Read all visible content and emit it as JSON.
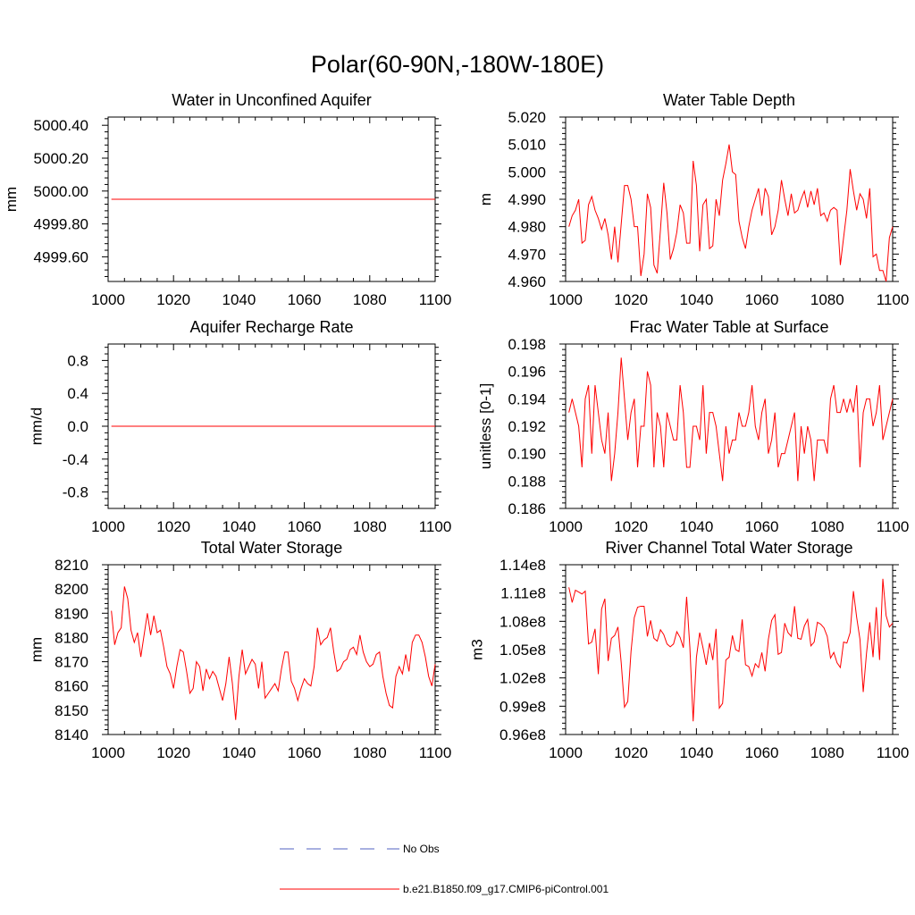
{
  "figure": {
    "title": "Polar(60-90N,-180W-180E)",
    "series_color": "#ff0000",
    "obs_color": "#5060c0"
  },
  "legend": {
    "entries": [
      {
        "label": "No Obs",
        "style": "dashed",
        "color": "#5060c0"
      },
      {
        "label": "b.e21.B1850.f09_g17.CMIP6-piControl.001",
        "style": "solid",
        "color": "#ff0000"
      }
    ]
  },
  "chart_data": [
    {
      "type": "line",
      "title": "Water in Unconfined Aquifer",
      "xlabel": "",
      "ylabel": "mm",
      "xlim": [
        1000,
        1100
      ],
      "ylim": [
        4999.45,
        5000.45
      ],
      "xticks": [
        "1000",
        "1020",
        "1040",
        "1060",
        "1080",
        "1100"
      ],
      "yticks": [
        {
          "v": 4999.6,
          "label": "4999.60"
        },
        {
          "v": 4999.8,
          "label": "4999.80"
        },
        {
          "v": 5000.0,
          "label": "5000.00"
        },
        {
          "v": 5000.2,
          "label": "5000.20"
        },
        {
          "v": 5000.4,
          "label": "5000.40"
        }
      ],
      "x_start": 1001,
      "series": [
        {
          "name": "b.e21.B1850.f09_g17.CMIP6-piControl.001",
          "values": [
            4999.95,
            4999.95,
            4999.95,
            4999.95,
            4999.95,
            4999.95,
            4999.95,
            4999.95,
            4999.95,
            4999.95,
            4999.95,
            4999.95,
            4999.95,
            4999.95,
            4999.95,
            4999.95,
            4999.95,
            4999.95,
            4999.95,
            4999.95,
            4999.95,
            4999.95,
            4999.95,
            4999.95,
            4999.95,
            4999.95,
            4999.95,
            4999.95,
            4999.95,
            4999.95,
            4999.95,
            4999.95,
            4999.95,
            4999.95,
            4999.95,
            4999.95,
            4999.95,
            4999.95,
            4999.95,
            4999.95,
            4999.95,
            4999.95,
            4999.95,
            4999.95,
            4999.95,
            4999.95,
            4999.95,
            4999.95,
            4999.95,
            4999.95,
            4999.95,
            4999.95,
            4999.95,
            4999.95,
            4999.95,
            4999.95,
            4999.95,
            4999.95,
            4999.95,
            4999.95,
            4999.95,
            4999.95,
            4999.95,
            4999.95,
            4999.95,
            4999.95,
            4999.95,
            4999.95,
            4999.95,
            4999.95,
            4999.95,
            4999.95,
            4999.95,
            4999.95,
            4999.95,
            4999.95,
            4999.95,
            4999.95,
            4999.95,
            4999.95,
            4999.95,
            4999.95,
            4999.95,
            4999.95,
            4999.95,
            4999.95,
            4999.95,
            4999.95,
            4999.95,
            4999.95,
            4999.95,
            4999.95,
            4999.95,
            4999.95,
            4999.95,
            4999.95,
            4999.95,
            4999.95,
            4999.95,
            4999.95
          ]
        }
      ]
    },
    {
      "type": "line",
      "title": "Water Table Depth",
      "xlabel": "",
      "ylabel": "m",
      "xlim": [
        1000,
        1100
      ],
      "ylim": [
        4.96,
        5.02
      ],
      "xticks": [
        "1000",
        "1020",
        "1040",
        "1060",
        "1080",
        "1100"
      ],
      "yticks": [
        {
          "v": 4.96,
          "label": "4.960"
        },
        {
          "v": 4.97,
          "label": "4.970"
        },
        {
          "v": 4.98,
          "label": "4.980"
        },
        {
          "v": 4.99,
          "label": "4.990"
        },
        {
          "v": 5.0,
          "label": "5.000"
        },
        {
          "v": 5.01,
          "label": "5.010"
        },
        {
          "v": 5.02,
          "label": "5.020"
        }
      ],
      "x_start": 1001,
      "series": [
        {
          "name": "b.e21.B1850.f09_g17.CMIP6-piControl.001",
          "values": [
            4.98,
            4.984,
            4.986,
            4.99,
            4.974,
            4.975,
            4.988,
            4.991,
            4.986,
            4.983,
            4.979,
            4.983,
            4.977,
            4.968,
            4.98,
            4.967,
            4.981,
            4.995,
            4.995,
            4.99,
            4.98,
            4.98,
            4.962,
            4.97,
            4.992,
            4.987,
            4.966,
            4.963,
            4.979,
            4.996,
            4.985,
            4.968,
            4.972,
            4.978,
            4.988,
            4.985,
            4.974,
            4.974,
            5.004,
            4.995,
            4.971,
            4.988,
            4.99,
            4.972,
            4.973,
            4.99,
            4.984,
            4.997,
            5.003,
            5.01,
            5.0,
            4.999,
            4.982,
            4.976,
            4.972,
            4.98,
            4.986,
            4.99,
            4.994,
            4.984,
            4.994,
            4.991,
            4.977,
            4.98,
            4.986,
            4.997,
            4.99,
            4.984,
            4.992,
            4.985,
            4.986,
            4.99,
            4.993,
            4.987,
            4.993,
            4.988,
            4.994,
            4.984,
            4.985,
            4.982,
            4.986,
            4.987,
            4.986,
            4.966,
            4.976,
            4.986,
            5.001,
            4.993,
            4.986,
            4.992,
            4.99,
            4.983,
            4.994,
            4.969,
            4.97,
            4.964,
            4.964,
            4.96,
            4.976,
            4.98
          ]
        }
      ]
    },
    {
      "type": "line",
      "title": "Aquifer Recharge Rate",
      "xlabel": "",
      "ylabel": "mm/d",
      "xlim": [
        1000,
        1100
      ],
      "ylim": [
        -1.0,
        1.0
      ],
      "xticks": [
        "1000",
        "1020",
        "1040",
        "1060",
        "1080",
        "1100"
      ],
      "yticks": [
        {
          "v": -0.8,
          "label": "-0.8"
        },
        {
          "v": -0.4,
          "label": "-0.4"
        },
        {
          "v": 0.0,
          "label": "0.0"
        },
        {
          "v": 0.4,
          "label": "0.4"
        },
        {
          "v": 0.8,
          "label": "0.8"
        }
      ],
      "x_start": 1001,
      "series": [
        {
          "name": "b.e21.B1850.f09_g17.CMIP6-piControl.001",
          "values": [
            0.0,
            0.0,
            0.0,
            0.0,
            0.0,
            0.0,
            0.0,
            0.0,
            0.0,
            0.0,
            0.0,
            0.0,
            0.0,
            0.0,
            0.0,
            0.0,
            0.0,
            0.0,
            0.0,
            0.0,
            0.0,
            0.0,
            0.0,
            0.0,
            0.0,
            0.0,
            0.0,
            0.0,
            0.0,
            0.0,
            0.0,
            0.0,
            0.0,
            0.0,
            0.0,
            0.0,
            0.0,
            0.0,
            0.0,
            0.0,
            0.0,
            0.0,
            0.0,
            0.0,
            0.0,
            0.0,
            0.0,
            0.0,
            0.0,
            0.0,
            0.0,
            0.0,
            0.0,
            0.0,
            0.0,
            0.0,
            0.0,
            0.0,
            0.0,
            0.0,
            0.0,
            0.0,
            0.0,
            0.0,
            0.0,
            0.0,
            0.0,
            0.0,
            0.0,
            0.0,
            0.0,
            0.0,
            0.0,
            0.0,
            0.0,
            0.0,
            0.0,
            0.0,
            0.0,
            0.0,
            0.0,
            0.0,
            0.0,
            0.0,
            0.0,
            0.0,
            0.0,
            0.0,
            0.0,
            0.0,
            0.0,
            0.0,
            0.0,
            0.0,
            0.0,
            0.0,
            0.0,
            0.0,
            0.0,
            0.0
          ]
        }
      ]
    },
    {
      "type": "line",
      "title": "Frac Water Table at Surface",
      "xlabel": "",
      "ylabel": "unitless [0-1]",
      "xlim": [
        1000,
        1100
      ],
      "ylim": [
        0.186,
        0.198
      ],
      "xticks": [
        "1000",
        "1020",
        "1040",
        "1060",
        "1080",
        "1100"
      ],
      "yticks": [
        {
          "v": 0.186,
          "label": "0.186"
        },
        {
          "v": 0.188,
          "label": "0.188"
        },
        {
          "v": 0.19,
          "label": "0.190"
        },
        {
          "v": 0.192,
          "label": "0.192"
        },
        {
          "v": 0.194,
          "label": "0.194"
        },
        {
          "v": 0.196,
          "label": "0.196"
        },
        {
          "v": 0.198,
          "label": "0.198"
        }
      ],
      "x_start": 1001,
      "series": [
        {
          "name": "b.e21.B1850.f09_g17.CMIP6-piControl.001",
          "values": [
            0.193,
            0.194,
            0.193,
            0.192,
            0.189,
            0.194,
            0.195,
            0.19,
            0.195,
            0.193,
            0.191,
            0.19,
            0.193,
            0.188,
            0.19,
            0.193,
            0.197,
            0.194,
            0.191,
            0.193,
            0.194,
            0.189,
            0.192,
            0.192,
            0.196,
            0.195,
            0.189,
            0.193,
            0.192,
            0.189,
            0.193,
            0.192,
            0.191,
            0.191,
            0.195,
            0.193,
            0.189,
            0.189,
            0.192,
            0.192,
            0.191,
            0.195,
            0.19,
            0.193,
            0.193,
            0.192,
            0.19,
            0.188,
            0.192,
            0.19,
            0.191,
            0.191,
            0.193,
            0.192,
            0.192,
            0.193,
            0.195,
            0.192,
            0.191,
            0.193,
            0.194,
            0.19,
            0.191,
            0.193,
            0.189,
            0.19,
            0.19,
            0.191,
            0.192,
            0.193,
            0.188,
            0.192,
            0.19,
            0.192,
            0.191,
            0.188,
            0.191,
            0.191,
            0.191,
            0.19,
            0.194,
            0.195,
            0.193,
            0.193,
            0.194,
            0.193,
            0.194,
            0.193,
            0.195,
            0.189,
            0.193,
            0.194,
            0.194,
            0.192,
            0.193,
            0.195,
            0.191,
            0.192,
            0.193,
            0.194
          ]
        }
      ]
    },
    {
      "type": "line",
      "title": "Total Water Storage",
      "xlabel": "",
      "ylabel": "mm",
      "xlim": [
        1000,
        1100
      ],
      "ylim": [
        8140,
        8210
      ],
      "xticks": [
        "1000",
        "1020",
        "1040",
        "1060",
        "1080",
        "1100"
      ],
      "yticks": [
        {
          "v": 8140,
          "label": "8140"
        },
        {
          "v": 8150,
          "label": "8150"
        },
        {
          "v": 8160,
          "label": "8160"
        },
        {
          "v": 8170,
          "label": "8170"
        },
        {
          "v": 8180,
          "label": "8180"
        },
        {
          "v": 8190,
          "label": "8190"
        },
        {
          "v": 8200,
          "label": "8200"
        },
        {
          "v": 8210,
          "label": "8210"
        }
      ],
      "x_start": 1001,
      "series": [
        {
          "name": "b.e21.B1850.f09_g17.CMIP6-piControl.001",
          "values": [
            8191,
            8177,
            8182,
            8184,
            8201,
            8196,
            8183,
            8178,
            8182,
            8172,
            8181,
            8190,
            8181,
            8189,
            8182,
            8183,
            8176,
            8168,
            8165,
            8159,
            8168,
            8175,
            8174,
            8166,
            8157,
            8159,
            8170,
            8168,
            8158,
            8167,
            8163,
            8166,
            8164,
            8159,
            8154,
            8161,
            8172,
            8161,
            8146,
            8164,
            8175,
            8165,
            8168,
            8171,
            8169,
            8159,
            8170,
            8155,
            8157,
            8159,
            8161,
            8158,
            8167,
            8174,
            8174,
            8162,
            8159,
            8154,
            8159,
            8163,
            8161,
            8160,
            8168,
            8184,
            8177,
            8179,
            8180,
            8184,
            8174,
            8166,
            8167,
            8170,
            8171,
            8175,
            8176,
            8173,
            8181,
            8174,
            8170,
            8168,
            8169,
            8173,
            8174,
            8164,
            8157,
            8152,
            8151,
            8164,
            8168,
            8165,
            8173,
            8166,
            8178,
            8181,
            8181,
            8178,
            8172,
            8164,
            8160,
            8169
          ]
        }
      ]
    },
    {
      "type": "line",
      "title": "River Channel Total Water Storage",
      "xlabel": "",
      "ylabel": "m3",
      "xlim": [
        1000,
        1100
      ],
      "ylim": [
        0.96,
        1.14
      ],
      "ylim_units_scale": "1e8",
      "xticks": [
        "1000",
        "1020",
        "1040",
        "1060",
        "1080",
        "1100"
      ],
      "yticks": [
        {
          "v": 0.96,
          "label": "0.96e8"
        },
        {
          "v": 0.99,
          "label": "0.99e8"
        },
        {
          "v": 1.02,
          "label": "1.02e8"
        },
        {
          "v": 1.05,
          "label": "1.05e8"
        },
        {
          "v": 1.08,
          "label": "1.08e8"
        },
        {
          "v": 1.11,
          "label": "1.11e8"
        },
        {
          "v": 1.14,
          "label": "1.14e8"
        }
      ],
      "x_start": 1001,
      "series": [
        {
          "name": "b.e21.B1850.f09_g17.CMIP6-piControl.001",
          "values": [
            1.116,
            1.1,
            1.113,
            1.111,
            1.109,
            1.112,
            1.056,
            1.058,
            1.072,
            1.024,
            1.093,
            1.104,
            1.038,
            1.062,
            1.065,
            1.074,
            1.036,
            0.989,
            0.995,
            1.048,
            1.084,
            1.095,
            1.096,
            1.096,
            1.064,
            1.081,
            1.062,
            1.059,
            1.071,
            1.066,
            1.056,
            1.053,
            1.056,
            1.069,
            1.063,
            1.052,
            1.106,
            1.052,
            0.974,
            1.042,
            1.068,
            1.052,
            1.034,
            1.057,
            1.039,
            1.072,
            0.988,
            0.993,
            1.039,
            1.042,
            1.065,
            1.05,
            1.048,
            1.082,
            1.034,
            1.032,
            1.022,
            1.035,
            1.031,
            1.047,
            1.027,
            1.061,
            1.081,
            1.087,
            1.045,
            1.047,
            1.078,
            1.068,
            1.064,
            1.096,
            1.062,
            1.061,
            1.075,
            1.082,
            1.054,
            1.058,
            1.079,
            1.077,
            1.073,
            1.064,
            1.041,
            1.047,
            1.036,
            1.031,
            1.058,
            1.057,
            1.068,
            1.112,
            1.084,
            1.061,
            1.005,
            1.046,
            1.079,
            1.042,
            1.095,
            1.039,
            1.125,
            1.086,
            1.074,
            1.078
          ]
        }
      ]
    }
  ]
}
